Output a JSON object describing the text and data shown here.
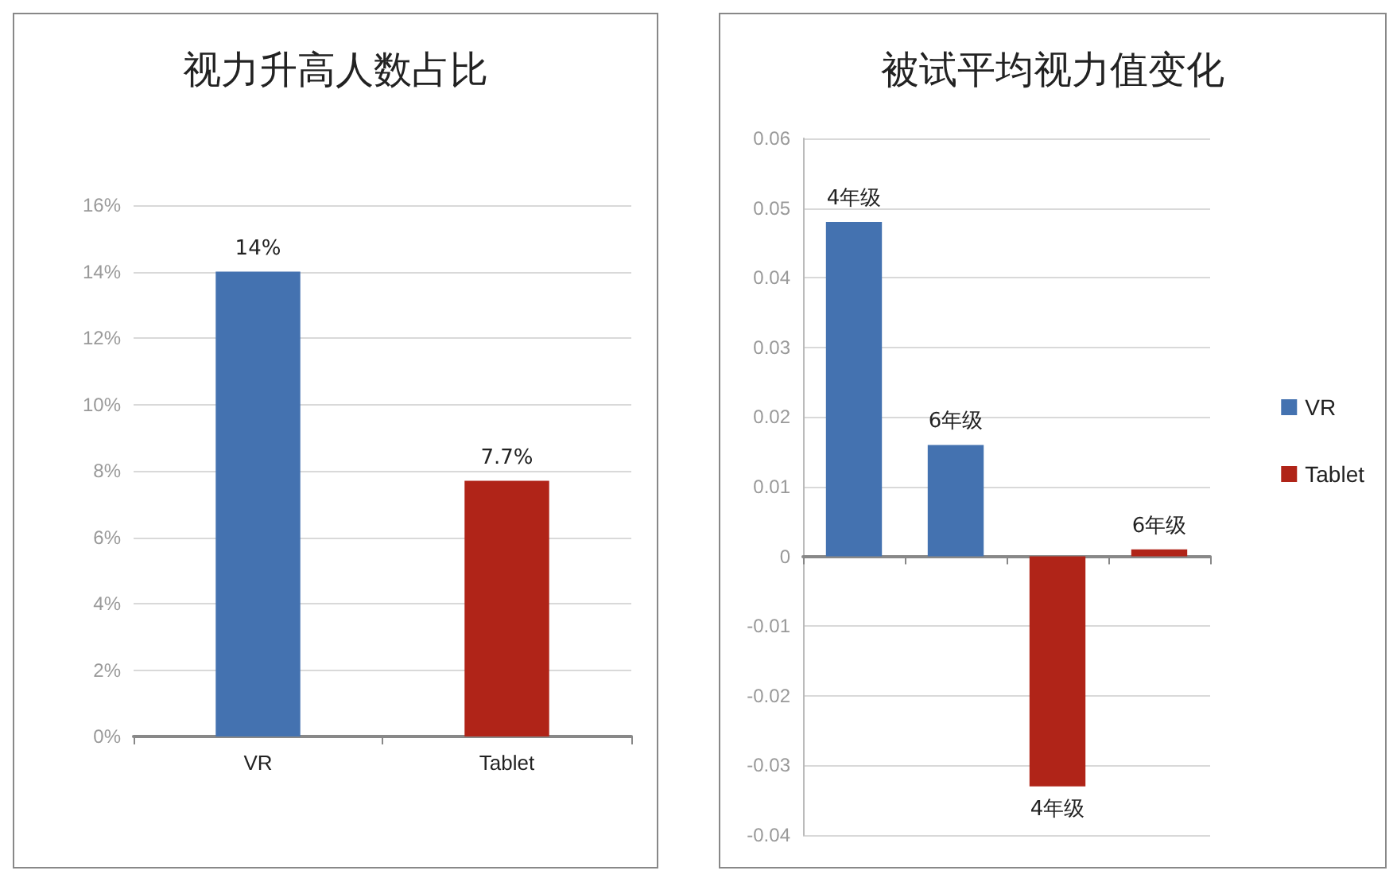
{
  "chart_data": [
    {
      "type": "bar",
      "title": "视力升高人数占比",
      "categories": [
        "VR",
        "Tablet"
      ],
      "values": [
        14,
        7.7
      ],
      "colors": [
        "#4472b0",
        "#b02418"
      ],
      "value_labels": [
        "14%",
        "7.7%"
      ],
      "ylim": [
        0,
        16
      ],
      "yticks": [
        {
          "value": 0,
          "label": "0%"
        },
        {
          "value": 2,
          "label": "2%"
        },
        {
          "value": 4,
          "label": "4%"
        },
        {
          "value": 6,
          "label": "6%"
        },
        {
          "value": 8,
          "label": "8%"
        },
        {
          "value": 10,
          "label": "10%"
        },
        {
          "value": 12,
          "label": "12%"
        },
        {
          "value": 14,
          "label": "14%"
        },
        {
          "value": 16,
          "label": "16%"
        }
      ],
      "grid": "y",
      "legend": false
    },
    {
      "type": "bar",
      "title": "被试平均视力值变化",
      "categories": [
        null,
        null,
        null,
        null
      ],
      "stacked": true,
      "series": [
        {
          "name": "VR",
          "color": "#4472b0",
          "values": [
            0.048,
            0.016,
            null,
            null
          ]
        },
        {
          "name": "Tablet",
          "color": "#b02418",
          "values": [
            null,
            null,
            -0.033,
            0.001
          ]
        }
      ],
      "annotations": [
        {
          "text": "4年级",
          "y": 0.048
        },
        {
          "text": "6年级",
          "y": 0.016
        },
        {
          "text": "4年级",
          "y": -0.033
        },
        {
          "text": "6年级",
          "y": 0.001
        }
      ],
      "ylim": [
        -0.04,
        0.06
      ],
      "yticks": [
        -0.04,
        -0.03,
        -0.02,
        -0.01,
        0,
        0.01,
        0.02,
        0.03,
        0.04,
        0.05,
        0.06
      ],
      "grid": "y",
      "legend": "right"
    }
  ]
}
